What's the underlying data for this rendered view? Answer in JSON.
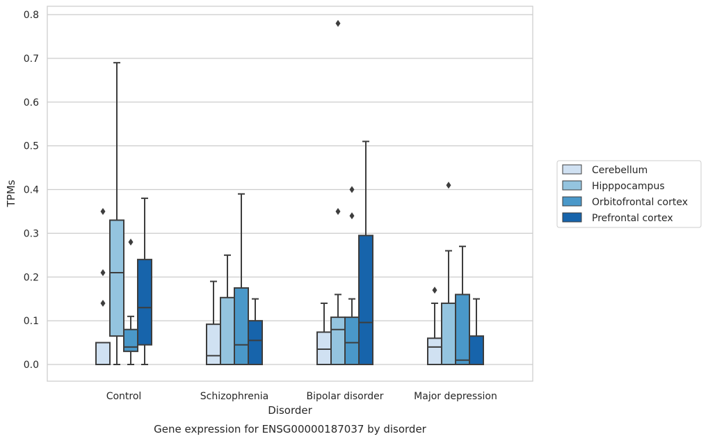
{
  "chart_data": {
    "type": "boxplot",
    "caption": "Gene expression for ENSG00000187037 by disorder",
    "xlabel": "Disorder",
    "ylabel": "TPMs",
    "ylim": [
      -0.04,
      0.82
    ],
    "yticks": [
      "0.0",
      "0.1",
      "0.2",
      "0.3",
      "0.4",
      "0.5",
      "0.6",
      "0.7",
      "0.8"
    ],
    "categories": [
      "Control",
      "Schizophrenia",
      "Bipolar disorder",
      "Major depression"
    ],
    "grid": "horizontal",
    "legend_position": "right",
    "series": [
      {
        "name": "Cerebellum",
        "color": "#d0e1f2",
        "boxes": [
          {
            "whislo": 0.0,
            "q1": 0.0,
            "med": 0.0,
            "q3": 0.05,
            "whishi": 0.05,
            "fliers": []
          },
          {
            "whislo": 0.0,
            "q1": 0.0,
            "med": 0.02,
            "q3": 0.092,
            "whishi": 0.19,
            "fliers": []
          },
          {
            "whislo": 0.0,
            "q1": 0.0,
            "med": 0.035,
            "q3": 0.074,
            "whishi": 0.14,
            "fliers": []
          },
          {
            "whislo": 0.0,
            "q1": 0.0,
            "med": 0.04,
            "q3": 0.06,
            "whishi": 0.14,
            "fliers": [
              0.17
            ]
          }
        ]
      },
      {
        "name": "Hipppocampus",
        "color": "#94c4df",
        "boxes": [
          {
            "whislo": 0.0,
            "q1": 0.065,
            "med": 0.21,
            "q3": 0.33,
            "whishi": 0.69,
            "fliers": []
          },
          {
            "whislo": 0.0,
            "q1": 0.0,
            "med": 0.0,
            "q3": 0.153,
            "whishi": 0.25,
            "fliers": []
          },
          {
            "whislo": 0.0,
            "q1": 0.0,
            "med": 0.08,
            "q3": 0.108,
            "whishi": 0.16,
            "fliers": [
              0.35,
              0.78
            ]
          },
          {
            "whislo": 0.0,
            "q1": 0.0,
            "med": 0.0,
            "q3": 0.14,
            "whishi": 0.26,
            "fliers": [
              0.41
            ]
          }
        ]
      },
      {
        "name": "Orbitofrontal cortex",
        "color": "#4a98c9",
        "boxes": [
          {
            "whislo": 0.0,
            "q1": 0.03,
            "med": 0.04,
            "q3": 0.08,
            "whishi": 0.11,
            "fliers": [
              0.28
            ]
          },
          {
            "whislo": 0.0,
            "q1": 0.0,
            "med": 0.045,
            "q3": 0.175,
            "whishi": 0.39,
            "fliers": []
          },
          {
            "whislo": 0.0,
            "q1": 0.0,
            "med": 0.05,
            "q3": 0.108,
            "whishi": 0.15,
            "fliers": [
              0.34,
              0.4
            ]
          },
          {
            "whislo": 0.0,
            "q1": 0.0,
            "med": 0.01,
            "q3": 0.16,
            "whishi": 0.27,
            "fliers": []
          }
        ]
      },
      {
        "name": "Prefrontal cortex",
        "color": "#1764ab",
        "boxes": [
          {
            "whislo": 0.0,
            "q1": 0.045,
            "med": 0.13,
            "q3": 0.24,
            "whishi": 0.38,
            "fliers": []
          },
          {
            "whislo": 0.0,
            "q1": 0.0,
            "med": 0.055,
            "q3": 0.1,
            "whishi": 0.15,
            "fliers": []
          },
          {
            "whislo": 0.0,
            "q1": 0.0,
            "med": 0.096,
            "q3": 0.295,
            "whishi": 0.51,
            "fliers": []
          },
          {
            "whislo": 0.0,
            "q1": 0.0,
            "med": 0.0,
            "q3": 0.065,
            "whishi": 0.15,
            "fliers": []
          }
        ]
      }
    ],
    "control_extra_fliers": {
      "Cerebellum": [
        0.14,
        0.21,
        0.35
      ]
    }
  }
}
